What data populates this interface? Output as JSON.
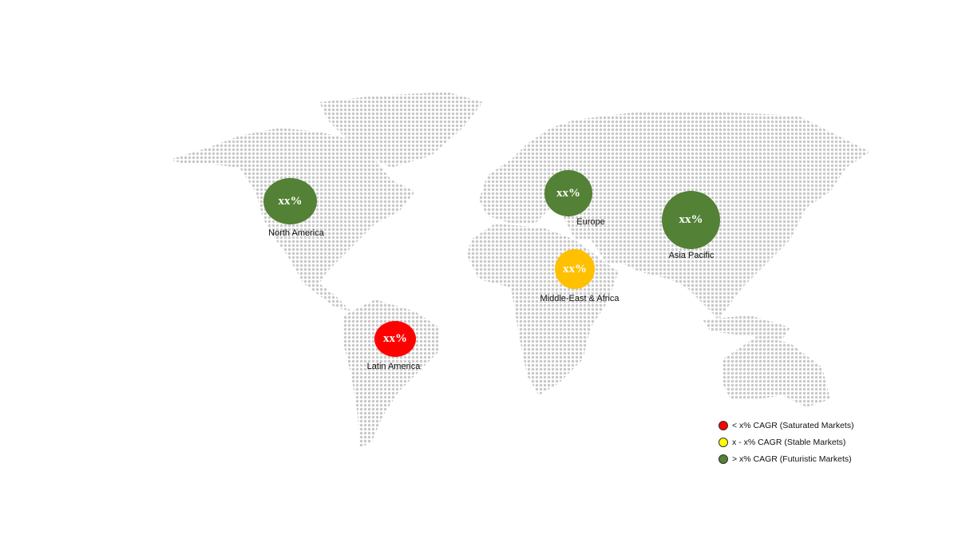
{
  "regions": [
    {
      "name": "North America",
      "value": "xx%",
      "color": "#538135"
    },
    {
      "name": "Europe",
      "value": "xx%",
      "color": "#538135"
    },
    {
      "name": "Asia Pacific",
      "value": "xx%",
      "color": "#538135"
    },
    {
      "name": "Middle-East & Africa",
      "value": "xx%",
      "color": "#ffc000"
    },
    {
      "name": "Latin America",
      "value": "xx%",
      "color": "#ff0000"
    }
  ],
  "legend": [
    {
      "label": "< x% CAGR (Saturated Markets)",
      "color": "#ff0000"
    },
    {
      "label": "x - x% CAGR (Stable Markets)",
      "color": "#ffff00"
    },
    {
      "label": "> x% CAGR (Futuristic Markets)",
      "color": "#538135"
    }
  ],
  "map_dot_color": "#c8c8c8"
}
